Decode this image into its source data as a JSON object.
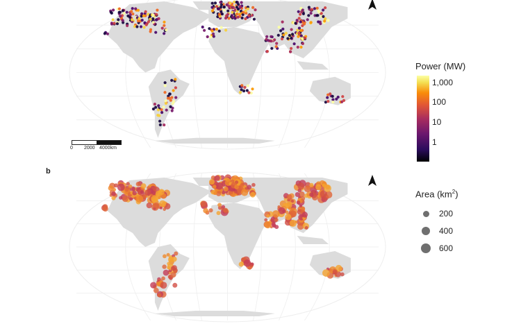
{
  "panel_a": {
    "label": "",
    "scale_bar": {
      "ticks": [
        "0",
        "2000",
        "4000km"
      ]
    }
  },
  "panel_b": {
    "label": "b"
  },
  "legend_power": {
    "title": "Power (MW)",
    "ticks": [
      "1,000",
      "100",
      "10",
      "1"
    ],
    "colormap": "inferno",
    "scale": "log"
  },
  "legend_area": {
    "title_prefix": "Area (km",
    "title_sup": "2",
    "title_suffix": ")",
    "items": [
      {
        "label": "200",
        "value": 200
      },
      {
        "label": "400",
        "value": 400
      },
      {
        "label": "600",
        "value": 600
      }
    ],
    "color": "#6f6f6f"
  },
  "colors": {
    "land": "#dcdcdc",
    "ocean_grid": "#eeeeee",
    "panel_b_point": "#e0663a"
  },
  "projection": "Robinson"
}
